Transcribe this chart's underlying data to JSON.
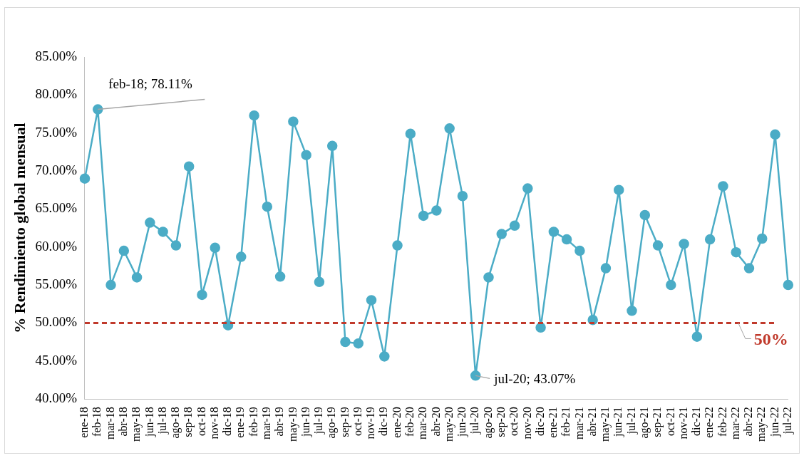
{
  "chart_data": {
    "type": "line",
    "ylabel": "% Rendimiento global mensual",
    "categories": [
      "ene-18",
      "feb-18",
      "mar-18",
      "abr-18",
      "may-18",
      "jun-18",
      "jul-18",
      "ago-18",
      "sep-18",
      "oct-18",
      "nov-18",
      "dic-18",
      "ene-19",
      "feb-19",
      "mar-19",
      "abr-19",
      "may-19",
      "jun-19",
      "jul-19",
      "ago-19",
      "sep-19",
      "oct-19",
      "nov-19",
      "dic-19",
      "ene-20",
      "feb-20",
      "mar-20",
      "abr-20",
      "may-20",
      "jun-20",
      "jul-20",
      "ago-20",
      "sep-20",
      "oct-20",
      "nov-20",
      "dic-20",
      "ene-21",
      "feb-21",
      "mar-21",
      "abr-21",
      "may-21",
      "jun-21",
      "jul-21",
      "ago-21",
      "sep-21",
      "oct-21",
      "nov-21",
      "dic-21",
      "ene-22",
      "feb-22",
      "mar-22",
      "abr-22",
      "may-22",
      "jun-22",
      "jul-22"
    ],
    "series": [
      {
        "color": "#4bacc6",
        "values": [
          69.0,
          78.11,
          55.0,
          59.5,
          56.0,
          63.2,
          62.0,
          60.2,
          70.6,
          53.7,
          59.9,
          49.7,
          58.7,
          77.3,
          65.3,
          56.1,
          76.5,
          72.1,
          55.4,
          73.3,
          47.5,
          47.3,
          53.0,
          45.6,
          60.2,
          74.9,
          64.1,
          64.8,
          75.6,
          66.7,
          43.07,
          56.0,
          61.7,
          62.8,
          67.7,
          49.4,
          62.0,
          61.0,
          59.5,
          50.4,
          57.2,
          67.5,
          51.6,
          64.2,
          60.2,
          55.0,
          60.4,
          48.2,
          61.0,
          68.0,
          59.3,
          57.2,
          61.1,
          74.8,
          55.0
        ]
      }
    ],
    "marker": "circle",
    "grid": false,
    "legend": false,
    "ylim": [
      40,
      85
    ],
    "yticks": [
      {
        "value": 40,
        "label": "40.00%"
      },
      {
        "value": 45,
        "label": "45.00%"
      },
      {
        "value": 50,
        "label": "50.00%"
      },
      {
        "value": 55,
        "label": "55.00%"
      },
      {
        "value": 60,
        "label": "60.00%"
      },
      {
        "value": 65,
        "label": "65.00%"
      },
      {
        "value": 70,
        "label": "70.00%"
      },
      {
        "value": 75,
        "label": "75.00%"
      },
      {
        "value": 80,
        "label": "80.00%"
      },
      {
        "value": 85,
        "label": "85.00%"
      }
    ],
    "ref_lines": [
      {
        "axis": "y",
        "value": 50,
        "label": "50%",
        "color": "#c0392b",
        "line_style": "dashed"
      }
    ],
    "annotations": [
      {
        "text": "feb-18; 78.11%",
        "x": "feb-18",
        "y": 78.11
      },
      {
        "text": "jul-20; 43.07%",
        "x": "jul-20",
        "y": 43.07
      }
    ]
  }
}
